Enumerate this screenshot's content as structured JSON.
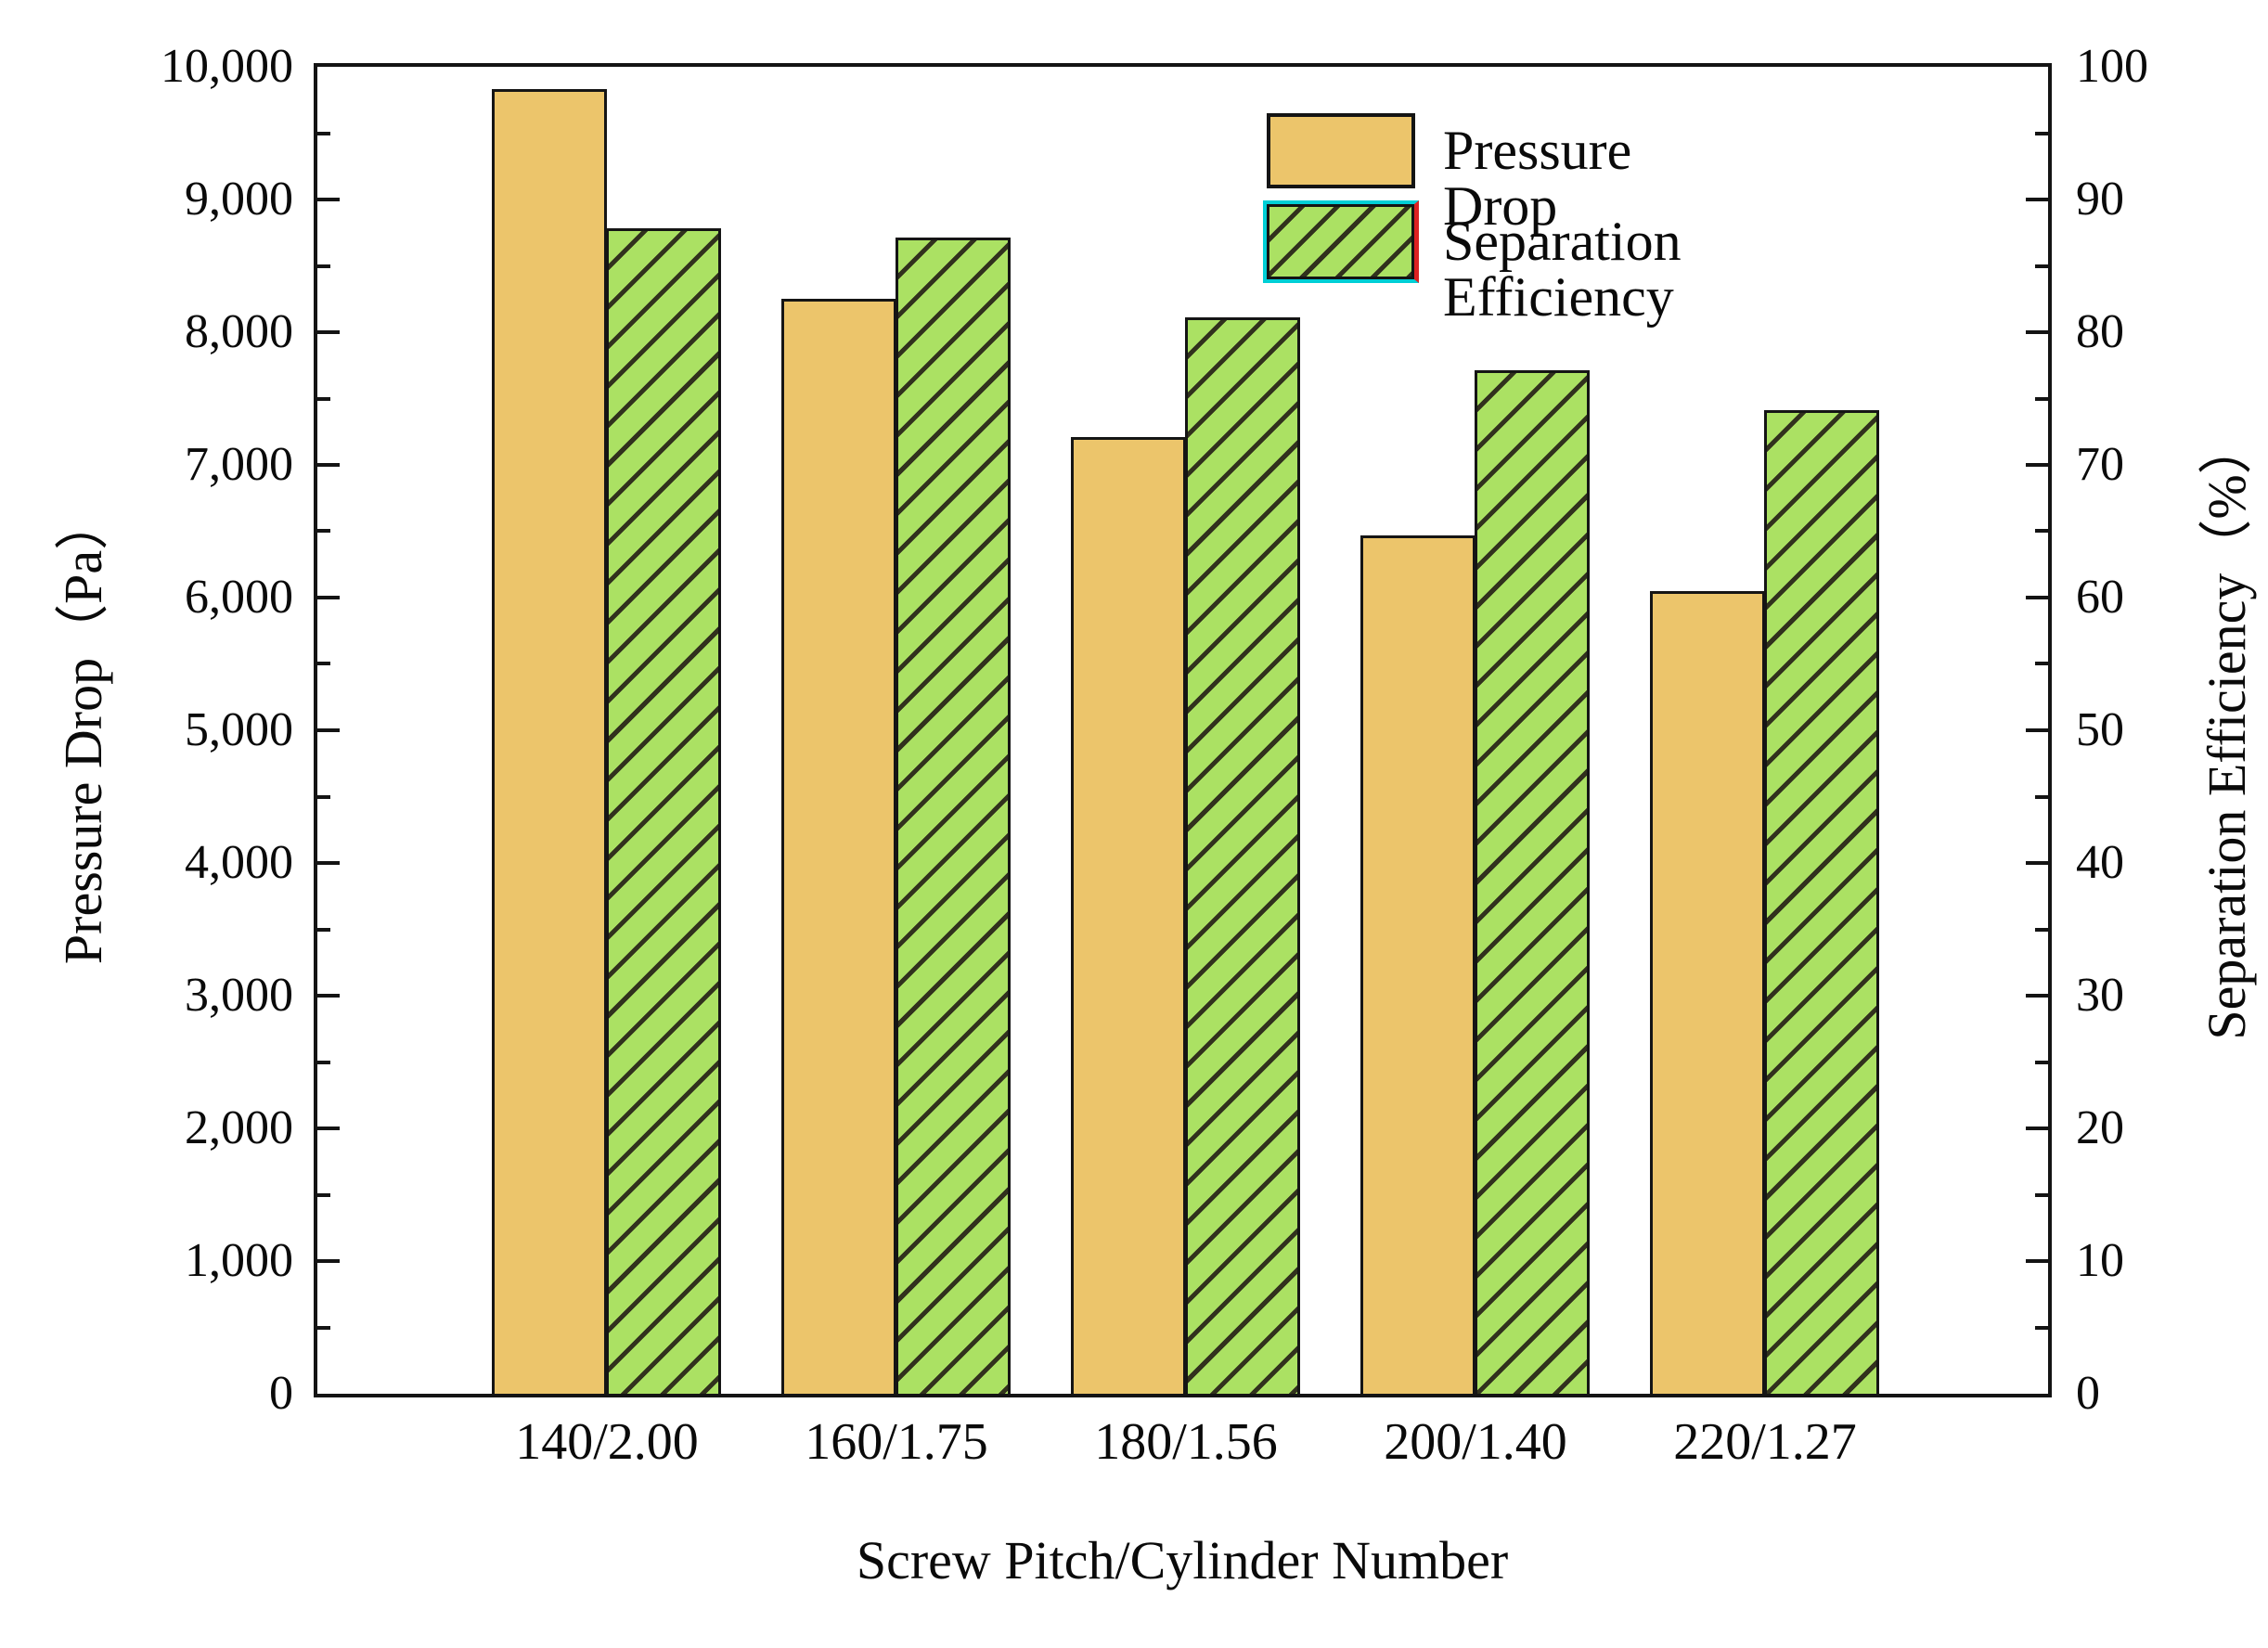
{
  "figure": {
    "legend": {
      "items": [
        {
          "label": "Pressure Drop",
          "swatch": "gold-solid"
        },
        {
          "label": "Separation Efficiency",
          "swatch": "green-hatched"
        }
      ]
    },
    "x_axis": {
      "title": "Screw Pitch/Cylinder Number"
    },
    "y_left_axis": {
      "title": "Pressure Drop（Pa）",
      "tick_labels": [
        "0",
        "1,000",
        "2,000",
        "3,000",
        "4,000",
        "5,000",
        "6,000",
        "7,000",
        "8,000",
        "9,000",
        "10,000"
      ]
    },
    "y_right_axis": {
      "title": "Separation Efficiency（%）",
      "tick_labels": [
        "0",
        "10",
        "20",
        "30",
        "40",
        "50",
        "60",
        "70",
        "80",
        "90",
        "100"
      ]
    },
    "colors": {
      "pressure_fill": "#ECC56B",
      "efficiency_fill": "#ABE163",
      "hatch_line": "#31311d",
      "bar_border": "#151515",
      "frame": "#141414",
      "legend_outline_cyan": "#00CFD6",
      "legend_outline_red": "#DD2222"
    }
  },
  "chart_data": {
    "type": "bar",
    "title": "",
    "categories": [
      "140/2.00",
      "160/1.75",
      "180/1.56",
      "200/1.40",
      "220/1.27"
    ],
    "series": [
      {
        "name": "Pressure Drop",
        "yaxis": "left",
        "unit": "Pa",
        "values": [
          9830,
          8250,
          7210,
          6470,
          6050
        ]
      },
      {
        "name": "Separation Efficiency",
        "yaxis": "right",
        "unit": "%",
        "values": [
          87.8,
          87.1,
          81.1,
          77.1,
          74.1
        ]
      }
    ],
    "xlabel": "Screw Pitch/Cylinder Number",
    "ylabel_left": "Pressure Drop（Pa）",
    "ylabel_right": "Separation Efficiency（%）",
    "ylim_left": [
      0,
      10000
    ],
    "ylim_right": [
      0,
      100
    ],
    "left_major_step": 1000,
    "left_minor_step": 500,
    "right_major_step": 10,
    "right_minor_step": 5,
    "grid": false,
    "legend_position": "top-right-inside",
    "bar_style": {
      "pressure": "solid gold",
      "efficiency": "green with black diagonal hatch"
    }
  }
}
